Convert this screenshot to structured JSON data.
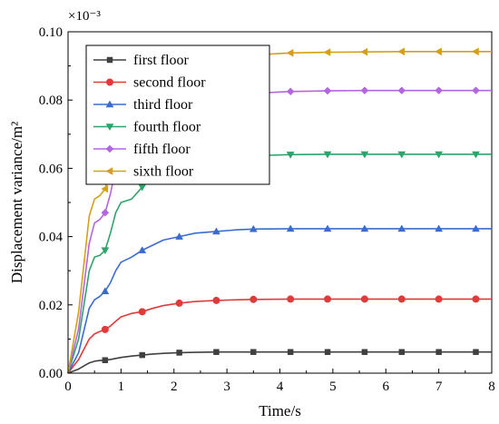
{
  "chart_data": {
    "type": "line",
    "xlabel": "Time/s",
    "ylabel": "Displacement variance/m²",
    "y_multiplier": "×10⁻³",
    "xlim": [
      0,
      8
    ],
    "ylim": [
      0,
      0.1
    ],
    "xticks": [
      "0",
      "1",
      "2",
      "3",
      "4",
      "5",
      "6",
      "7",
      "8"
    ],
    "yticks": [
      "0.00",
      "0.02",
      "0.04",
      "0.06",
      "0.08",
      "0.10"
    ],
    "legend_position": "top-left",
    "x": [
      0,
      0.2,
      0.4,
      0.5,
      0.6,
      0.7,
      0.8,
      0.9,
      1.0,
      1.2,
      1.4,
      1.6,
      1.8,
      2.1,
      2.4,
      2.8,
      3.2,
      3.5,
      4.2,
      4.9,
      5.6,
      6.3,
      7.0,
      7.7,
      8.0
    ],
    "marker_x": [
      0.7,
      1.4,
      2.1,
      2.8,
      3.5,
      4.2,
      4.9,
      5.6,
      6.3,
      7.0,
      7.7
    ],
    "series": [
      {
        "name": "first floor",
        "color": "#404040",
        "marker": "square",
        "values": [
          0,
          0.0012,
          0.003,
          0.0035,
          0.0037,
          0.0038,
          0.004,
          0.0043,
          0.0046,
          0.005,
          0.0053,
          0.0056,
          0.0058,
          0.006,
          0.0061,
          0.0062,
          0.0062,
          0.0062,
          0.0062,
          0.0062,
          0.0062,
          0.0062,
          0.0062,
          0.0062,
          0.0062
        ]
      },
      {
        "name": "second floor",
        "color": "#e03a3a",
        "marker": "circle",
        "values": [
          0,
          0.004,
          0.01,
          0.0115,
          0.0122,
          0.0128,
          0.0138,
          0.0152,
          0.0165,
          0.0175,
          0.018,
          0.019,
          0.0198,
          0.0205,
          0.021,
          0.0213,
          0.0215,
          0.0216,
          0.0217,
          0.0217,
          0.0217,
          0.0217,
          0.0217,
          0.0217,
          0.0217
        ]
      },
      {
        "name": "third floor",
        "color": "#3c6bd0",
        "marker": "triangle-up",
        "values": [
          0,
          0.006,
          0.019,
          0.0215,
          0.0225,
          0.024,
          0.0265,
          0.03,
          0.0325,
          0.034,
          0.036,
          0.0375,
          0.039,
          0.04,
          0.041,
          0.0415,
          0.042,
          0.0422,
          0.0423,
          0.0423,
          0.0423,
          0.0423,
          0.0423,
          0.0423,
          0.0423
        ]
      },
      {
        "name": "fourth floor",
        "color": "#2fa36b",
        "marker": "triangle-down",
        "values": [
          0,
          0.01,
          0.03,
          0.034,
          0.0345,
          0.036,
          0.041,
          0.047,
          0.05,
          0.051,
          0.0545,
          0.058,
          0.061,
          0.0618,
          0.0622,
          0.063,
          0.0635,
          0.0637,
          0.064,
          0.0641,
          0.0641,
          0.0641,
          0.0641,
          0.0641,
          0.0641
        ]
      },
      {
        "name": "fifth floor",
        "color": "#b366e0",
        "marker": "diamond",
        "values": [
          0,
          0.013,
          0.038,
          0.044,
          0.045,
          0.047,
          0.0525,
          0.06,
          0.065,
          0.069,
          0.071,
          0.074,
          0.077,
          0.0795,
          0.081,
          0.0815,
          0.082,
          0.082,
          0.0825,
          0.0827,
          0.0828,
          0.0828,
          0.0828,
          0.0828,
          0.0828
        ]
      },
      {
        "name": "sixth floor",
        "color": "#d4a017",
        "marker": "triangle-left",
        "values": [
          0,
          0.018,
          0.046,
          0.051,
          0.052,
          0.054,
          0.06,
          0.069,
          0.076,
          0.082,
          0.0845,
          0.087,
          0.09,
          0.0915,
          0.092,
          0.0925,
          0.093,
          0.0932,
          0.0938,
          0.094,
          0.0941,
          0.0942,
          0.0942,
          0.0942,
          0.0942
        ]
      }
    ]
  }
}
